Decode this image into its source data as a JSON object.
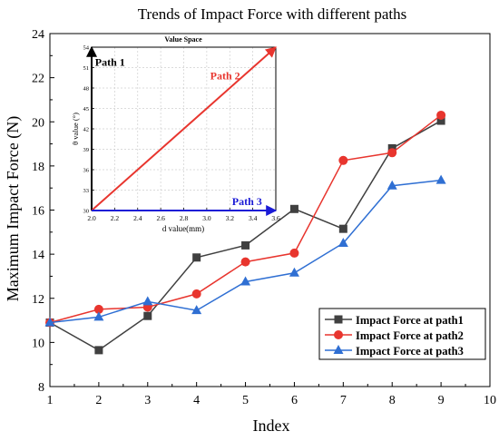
{
  "chart_data": [
    {
      "type": "line",
      "title": "Trends of Impact Force with different paths",
      "xlabel": "Index",
      "ylabel": "Maximum Impact Force (N)",
      "xlim": [
        1,
        10
      ],
      "ylim": [
        8,
        24
      ],
      "xticks": [
        1,
        2,
        3,
        4,
        5,
        6,
        7,
        8,
        9,
        10
      ],
      "yticks": [
        8,
        10,
        12,
        14,
        16,
        18,
        20,
        22,
        24
      ],
      "grid": false,
      "legend_position": "bottom-right",
      "x": [
        1,
        2,
        3,
        4,
        5,
        6,
        7,
        8,
        9
      ],
      "series": [
        {
          "name": "Impact Force at path1",
          "marker": "square",
          "color": "#404040",
          "values": [
            10.9,
            9.65,
            11.2,
            13.85,
            14.4,
            16.05,
            15.15,
            18.8,
            20.05
          ]
        },
        {
          "name": "Impact Force at path2",
          "marker": "circle",
          "color": "#e8352e",
          "values": [
            10.9,
            11.5,
            11.6,
            12.2,
            13.65,
            14.05,
            18.25,
            18.6,
            20.3
          ]
        },
        {
          "name": "Impact Force at path3",
          "marker": "triangle",
          "color": "#2f6fd3",
          "values": [
            10.9,
            11.15,
            11.85,
            11.45,
            12.75,
            13.15,
            14.5,
            17.1,
            17.35
          ]
        }
      ]
    },
    {
      "type": "line",
      "title": "Value Space",
      "xlabel": "d value(mm)",
      "ylabel": "θ value (°)",
      "xlim": [
        2.0,
        3.6
      ],
      "ylim": [
        30,
        54
      ],
      "xticks": [
        "2.0",
        "2.2",
        "2.4",
        "2.6",
        "2.8",
        "3.0",
        "3.2",
        "3.4",
        "3.6"
      ],
      "yticks": [
        "30",
        "33",
        "36",
        "39",
        "42",
        "45",
        "48",
        "51",
        "54"
      ],
      "grid": true,
      "series": [
        {
          "name": "",
          "color": "#000000",
          "x": [
            2.0,
            2.0
          ],
          "values": [
            30,
            54
          ]
        },
        {
          "name": "",
          "color": "#e8352e",
          "x": [
            2.0,
            3.6
          ],
          "values": [
            30,
            54
          ]
        },
        {
          "name": "",
          "color": "#1a1ad6",
          "x": [
            2.0,
            3.6
          ],
          "values": [
            30,
            30
          ]
        }
      ],
      "annotations": [
        {
          "text": "Path 1",
          "color": "#000000",
          "x": 2.03,
          "y": 51.3
        },
        {
          "text": "Path 2",
          "color": "#e8352e",
          "x": 3.03,
          "y": 49.3
        },
        {
          "text": "Path 3",
          "color": "#1a1ad6",
          "x": 3.22,
          "y": 30.8
        }
      ]
    }
  ]
}
